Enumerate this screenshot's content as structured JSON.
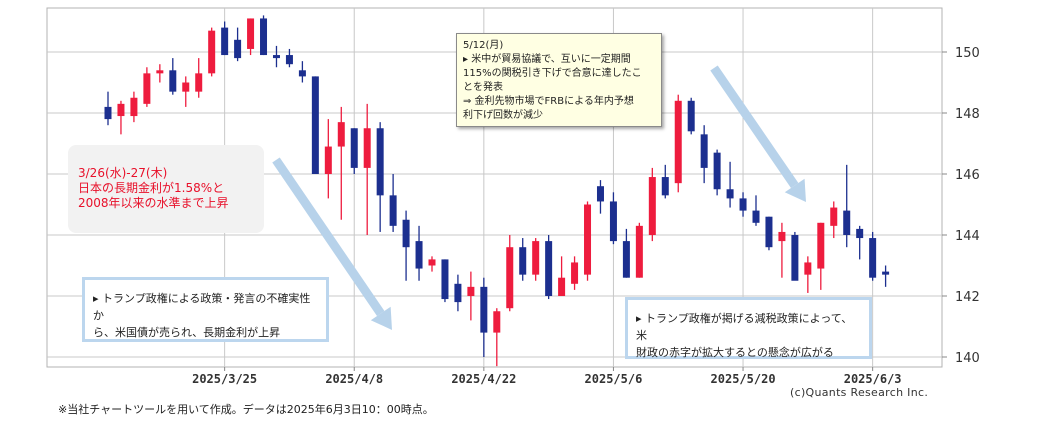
{
  "chart_data": {
    "type": "candlestick",
    "ylim": [
      139.6,
      151.5
    ],
    "yticks": [
      140,
      142,
      144,
      146,
      148,
      150
    ],
    "xtick_labels": [
      {
        "index": 9,
        "label": "2025/3/25"
      },
      {
        "index": 19,
        "label": "2025/4/8"
      },
      {
        "index": 29,
        "label": "2025/4/22"
      },
      {
        "index": 39,
        "label": "2025/5/6"
      },
      {
        "index": 49,
        "label": "2025/5/20"
      },
      {
        "index": 59,
        "label": "2025/6/3"
      }
    ],
    "grid": true,
    "up_color": "#ee1c3e",
    "down_color": "#1c2f8f",
    "candles": [
      {
        "open": 148.2,
        "high": 148.7,
        "low": 147.6,
        "close": 147.8
      },
      {
        "open": 147.9,
        "high": 148.4,
        "low": 147.3,
        "close": 148.3
      },
      {
        "open": 147.9,
        "high": 148.7,
        "low": 147.7,
        "close": 148.5
      },
      {
        "open": 148.3,
        "high": 149.5,
        "low": 148.2,
        "close": 149.3
      },
      {
        "open": 149.3,
        "high": 149.6,
        "low": 149.0,
        "close": 149.4
      },
      {
        "open": 149.4,
        "high": 149.8,
        "low": 148.6,
        "close": 148.7
      },
      {
        "open": 148.7,
        "high": 149.2,
        "low": 148.2,
        "close": 149.0
      },
      {
        "open": 148.7,
        "high": 149.8,
        "low": 148.5,
        "close": 149.3
      },
      {
        "open": 149.3,
        "high": 150.8,
        "low": 149.2,
        "close": 150.7
      },
      {
        "open": 150.8,
        "high": 151.0,
        "low": 149.9,
        "close": 149.9
      },
      {
        "open": 150.4,
        "high": 150.8,
        "low": 149.7,
        "close": 149.8
      },
      {
        "open": 150.1,
        "high": 151.1,
        "low": 149.9,
        "close": 151.1
      },
      {
        "open": 151.1,
        "high": 151.2,
        "low": 149.9,
        "close": 149.9
      },
      {
        "open": 149.9,
        "high": 150.2,
        "low": 149.5,
        "close": 149.8
      },
      {
        "open": 149.9,
        "high": 150.1,
        "low": 149.5,
        "close": 149.6
      },
      {
        "open": 149.4,
        "high": 149.7,
        "low": 149.0,
        "close": 149.2
      },
      {
        "open": 149.2,
        "high": 149.2,
        "low": 146.0,
        "close": 146.0
      },
      {
        "open": 146.0,
        "high": 147.8,
        "low": 145.2,
        "close": 146.9
      },
      {
        "open": 146.9,
        "high": 148.2,
        "low": 144.5,
        "close": 147.7
      },
      {
        "open": 147.5,
        "high": 147.5,
        "low": 146.0,
        "close": 146.2
      },
      {
        "open": 146.2,
        "high": 148.3,
        "low": 144.0,
        "close": 147.5
      },
      {
        "open": 147.5,
        "high": 147.7,
        "low": 144.1,
        "close": 145.3
      },
      {
        "open": 145.3,
        "high": 146.0,
        "low": 144.1,
        "close": 144.3
      },
      {
        "open": 144.5,
        "high": 144.8,
        "low": 142.5,
        "close": 143.6
      },
      {
        "open": 143.8,
        "high": 144.3,
        "low": 142.5,
        "close": 142.9
      },
      {
        "open": 143.0,
        "high": 143.3,
        "low": 142.8,
        "close": 143.2
      },
      {
        "open": 143.2,
        "high": 143.2,
        "low": 141.8,
        "close": 141.9
      },
      {
        "open": 142.4,
        "high": 142.7,
        "low": 141.5,
        "close": 141.8
      },
      {
        "open": 142.0,
        "high": 142.8,
        "low": 141.2,
        "close": 142.3
      },
      {
        "open": 142.3,
        "high": 142.6,
        "low": 140.0,
        "close": 140.8
      },
      {
        "open": 140.8,
        "high": 141.6,
        "low": 139.7,
        "close": 141.5
      },
      {
        "open": 141.6,
        "high": 144.0,
        "low": 141.5,
        "close": 143.6
      },
      {
        "open": 143.6,
        "high": 143.9,
        "low": 142.5,
        "close": 142.7
      },
      {
        "open": 142.7,
        "high": 143.9,
        "low": 142.5,
        "close": 143.8
      },
      {
        "open": 143.8,
        "high": 144.0,
        "low": 141.9,
        "close": 142.0
      },
      {
        "open": 142.0,
        "high": 143.3,
        "low": 142.0,
        "close": 142.6
      },
      {
        "open": 142.4,
        "high": 143.3,
        "low": 142.2,
        "close": 143.1
      },
      {
        "open": 142.7,
        "high": 145.1,
        "low": 142.5,
        "close": 145.0
      },
      {
        "open": 145.6,
        "high": 145.8,
        "low": 144.7,
        "close": 145.1
      },
      {
        "open": 145.1,
        "high": 145.4,
        "low": 143.7,
        "close": 143.8
      },
      {
        "open": 143.8,
        "high": 144.2,
        "low": 142.6,
        "close": 142.6
      },
      {
        "open": 142.6,
        "high": 144.4,
        "low": 142.6,
        "close": 144.3
      },
      {
        "open": 144.0,
        "high": 146.2,
        "low": 143.8,
        "close": 145.9
      },
      {
        "open": 145.9,
        "high": 146.3,
        "low": 145.2,
        "close": 145.3
      },
      {
        "open": 145.7,
        "high": 148.6,
        "low": 145.4,
        "close": 148.4
      },
      {
        "open": 148.4,
        "high": 148.5,
        "low": 147.3,
        "close": 147.4
      },
      {
        "open": 147.3,
        "high": 147.6,
        "low": 145.7,
        "close": 146.2
      },
      {
        "open": 146.7,
        "high": 146.8,
        "low": 145.3,
        "close": 145.5
      },
      {
        "open": 145.5,
        "high": 146.4,
        "low": 144.9,
        "close": 145.2
      },
      {
        "open": 145.2,
        "high": 145.4,
        "low": 144.6,
        "close": 144.8
      },
      {
        "open": 144.8,
        "high": 145.3,
        "low": 144.3,
        "close": 144.4
      },
      {
        "open": 144.6,
        "high": 144.6,
        "low": 143.5,
        "close": 143.6
      },
      {
        "open": 143.8,
        "high": 144.4,
        "low": 142.6,
        "close": 144.1
      },
      {
        "open": 144.0,
        "high": 144.1,
        "low": 142.6,
        "close": 142.5
      },
      {
        "open": 142.7,
        "high": 143.3,
        "low": 142.1,
        "close": 143.1
      },
      {
        "open": 142.9,
        "high": 144.4,
        "low": 142.2,
        "close": 144.4
      },
      {
        "open": 144.3,
        "high": 145.1,
        "low": 143.9,
        "close": 144.9
      },
      {
        "open": 144.8,
        "high": 146.3,
        "low": 143.6,
        "close": 144.0
      },
      {
        "open": 144.2,
        "high": 144.3,
        "low": 143.2,
        "close": 143.9
      },
      {
        "open": 143.9,
        "high": 144.1,
        "low": 142.5,
        "close": 142.6
      },
      {
        "open": 142.8,
        "high": 143.0,
        "low": 142.3,
        "close": 142.7
      }
    ]
  },
  "annotations": {
    "red_note": [
      "3/26(水)-27(木)",
      "日本の長期金利が1.58%と",
      "2008年以来の水準まで上昇"
    ],
    "left_note": [
      "▸ トランプ政権による政策・発言の不確実性か",
      "ら、米国債が売られ、長期金利が上昇"
    ],
    "right_note": [
      "▸ トランプ政権が掲げる減税政策によって、米",
      "財政の赤字が拡大するとの懸念が広がる"
    ],
    "yellow_note": [
      "5/12(月)",
      "▸ 米中が貿易協議で、互いに一定期間",
      "115%の関税引き下げで合意に達したこ",
      "とを発表",
      "⇒ 金利先物市場でFRBによる年内予想",
      "利下げ回数が減少"
    ]
  },
  "copyright": "(c)Quants Research Inc.",
  "footnote": "※当社チャートツールを用いて作成。データは2025年6月3日10：00時点。",
  "colors": {
    "grid": "#c8c8c8",
    "arrow": "#b7d2ea",
    "frame": "#b3b3b3",
    "axis_text": "#333333"
  }
}
